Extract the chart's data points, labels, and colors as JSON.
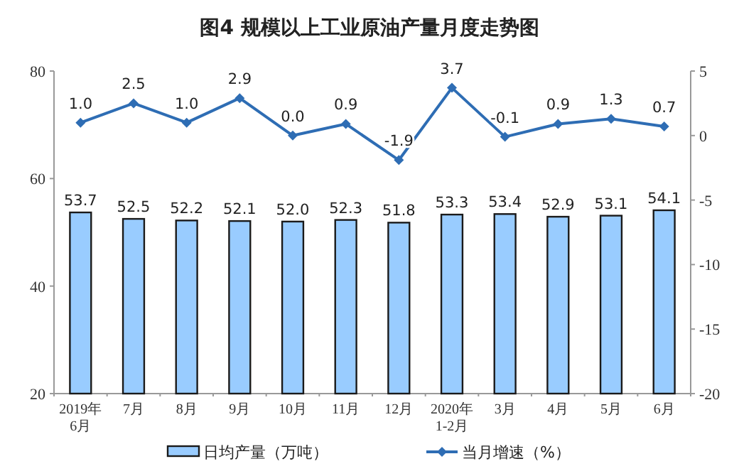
{
  "chart_data": {
    "type": "bar",
    "title": "图4  规模以上工业原油产量月度走势图",
    "categories": [
      "2019年\n6月",
      "7月",
      "8月",
      "9月",
      "10月",
      "11月",
      "12月",
      "2020年\n1-2月",
      "3月",
      "4月",
      "5月",
      "6月"
    ],
    "series": [
      {
        "name": "日均产量（万吨）",
        "color": "#99ccff",
        "values": [
          53.7,
          52.5,
          52.2,
          52.1,
          52.0,
          52.3,
          51.8,
          53.3,
          53.4,
          52.9,
          53.1,
          54.1
        ],
        "value_labels": [
          "53.7",
          "52.5",
          "52.2",
          "52.1",
          "52.0",
          "52.3",
          "51.8",
          "53.3",
          "53.4",
          "52.9",
          "53.1",
          "54.1"
        ]
      },
      {
        "name": "当月增速（%）",
        "type": "line",
        "axis": "y2",
        "color": "#2e6db4",
        "marker": "diamond",
        "values": [
          1.0,
          2.5,
          1.0,
          2.9,
          0.0,
          0.9,
          -1.9,
          3.7,
          -0.1,
          0.9,
          1.3,
          0.7
        ],
        "value_labels": [
          "1.0",
          "2.5",
          "1.0",
          "2.9",
          "0.0",
          "0.9",
          "-1.9",
          "3.7",
          "-0.1",
          "0.9",
          "1.3",
          "0.7"
        ]
      }
    ],
    "ylim": [
      20,
      80
    ],
    "yticks": [
      20,
      40,
      60,
      80
    ],
    "y2lim": [
      -20,
      5
    ],
    "y2ticks": [
      -20,
      -15,
      -10,
      -5,
      0,
      5
    ],
    "legend": "bottom",
    "grid": false
  }
}
